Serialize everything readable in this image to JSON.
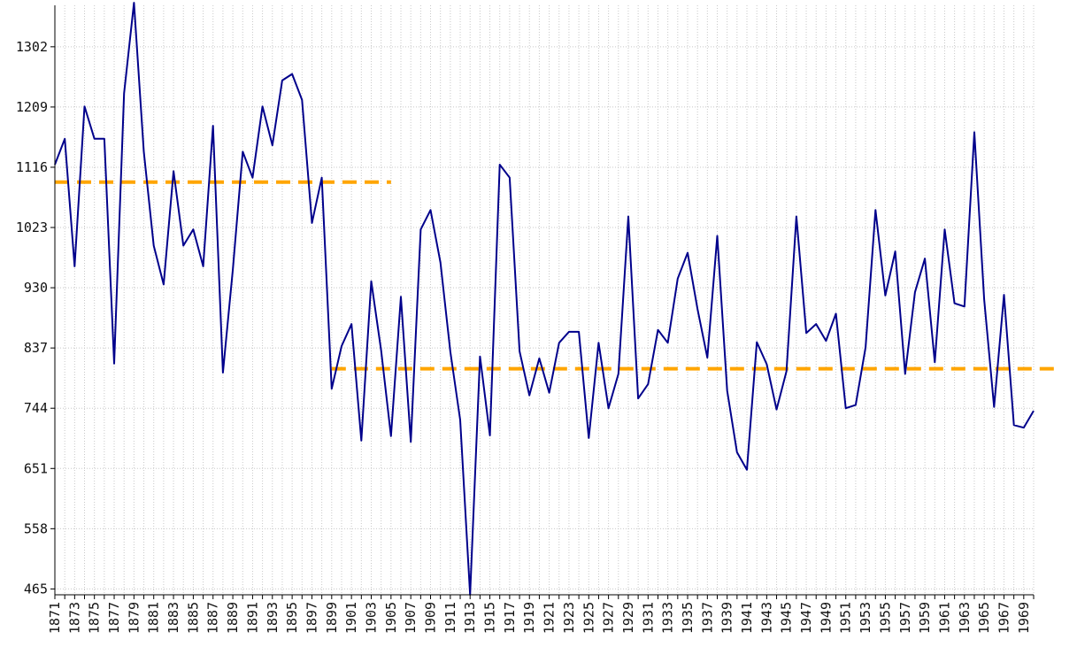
{
  "chart_data": {
    "type": "line",
    "title": "",
    "xlabel": "",
    "ylabel": "",
    "xlim": [
      1871,
      1970
    ],
    "ylim": [
      456,
      1366
    ],
    "y_ticks": [
      465,
      558,
      651,
      744,
      837,
      930,
      1023,
      1116,
      1209,
      1302
    ],
    "x_ticks": [
      1871,
      1873,
      1875,
      1877,
      1879,
      1881,
      1883,
      1885,
      1887,
      1889,
      1891,
      1893,
      1895,
      1897,
      1899,
      1901,
      1903,
      1905,
      1907,
      1909,
      1911,
      1913,
      1915,
      1917,
      1919,
      1921,
      1923,
      1925,
      1927,
      1929,
      1931,
      1933,
      1935,
      1937,
      1939,
      1941,
      1943,
      1945,
      1947,
      1949,
      1951,
      1953,
      1955,
      1957,
      1959,
      1961,
      1963,
      1965,
      1967,
      1969
    ],
    "grid": true,
    "colors": {
      "series": "#00008b",
      "mean_lines": "#ffa500",
      "grid": "#c8c8c8",
      "background": "#ffffff"
    },
    "series": [
      {
        "x": [
          1871,
          1872,
          1873,
          1874,
          1875,
          1876,
          1877,
          1878,
          1879,
          1880,
          1881,
          1882,
          1883,
          1884,
          1885,
          1886,
          1887,
          1888,
          1889,
          1890,
          1891,
          1892,
          1893,
          1894,
          1895,
          1896,
          1897,
          1898,
          1899,
          1900,
          1901,
          1902,
          1903,
          1904,
          1905,
          1906,
          1907,
          1908,
          1909,
          1910,
          1911,
          1912,
          1913,
          1914,
          1915,
          1916,
          1917,
          1918,
          1919,
          1920,
          1921,
          1922,
          1923,
          1924,
          1925,
          1926,
          1927,
          1928,
          1929,
          1930,
          1931,
          1932,
          1933,
          1934,
          1935,
          1936,
          1937,
          1938,
          1939,
          1940,
          1941,
          1942,
          1943,
          1944,
          1945,
          1946,
          1947,
          1948,
          1949,
          1950,
          1951,
          1952,
          1953,
          1954,
          1955,
          1956,
          1957,
          1958,
          1959,
          1960,
          1961,
          1962,
          1963,
          1964,
          1965,
          1966,
          1967,
          1968,
          1969,
          1970
        ],
        "values": [
          1120,
          1160,
          963,
          1210,
          1160,
          1160,
          813,
          1230,
          1370,
          1140,
          995,
          935,
          1110,
          995,
          1020,
          963,
          1180,
          799,
          958,
          1140,
          1100,
          1210,
          1150,
          1250,
          1260,
          1220,
          1030,
          1100,
          774,
          840,
          874,
          694,
          940,
          833,
          701,
          916,
          692,
          1020,
          1050,
          969,
          831,
          726,
          456,
          824,
          702,
          1120,
          1100,
          832,
          764,
          821,
          768,
          845,
          862,
          862,
          698,
          845,
          744,
          797,
          1040,
          759,
          781,
          865,
          845,
          944,
          984,
          897,
          822,
          1010,
          771,
          676,
          649,
          846,
          812,
          742,
          801,
          1040,
          860,
          874,
          848,
          890,
          744,
          749,
          838,
          1050,
          918,
          986,
          797,
          923,
          975,
          815,
          1020,
          906,
          901,
          1170,
          912,
          746,
          919,
          718,
          714,
          740
        ]
      }
    ],
    "mean_lines": [
      {
        "from": 1871,
        "to": 1905,
        "value": 1093
      },
      {
        "from": 1899,
        "to": 1970,
        "value": 805
      }
    ]
  }
}
